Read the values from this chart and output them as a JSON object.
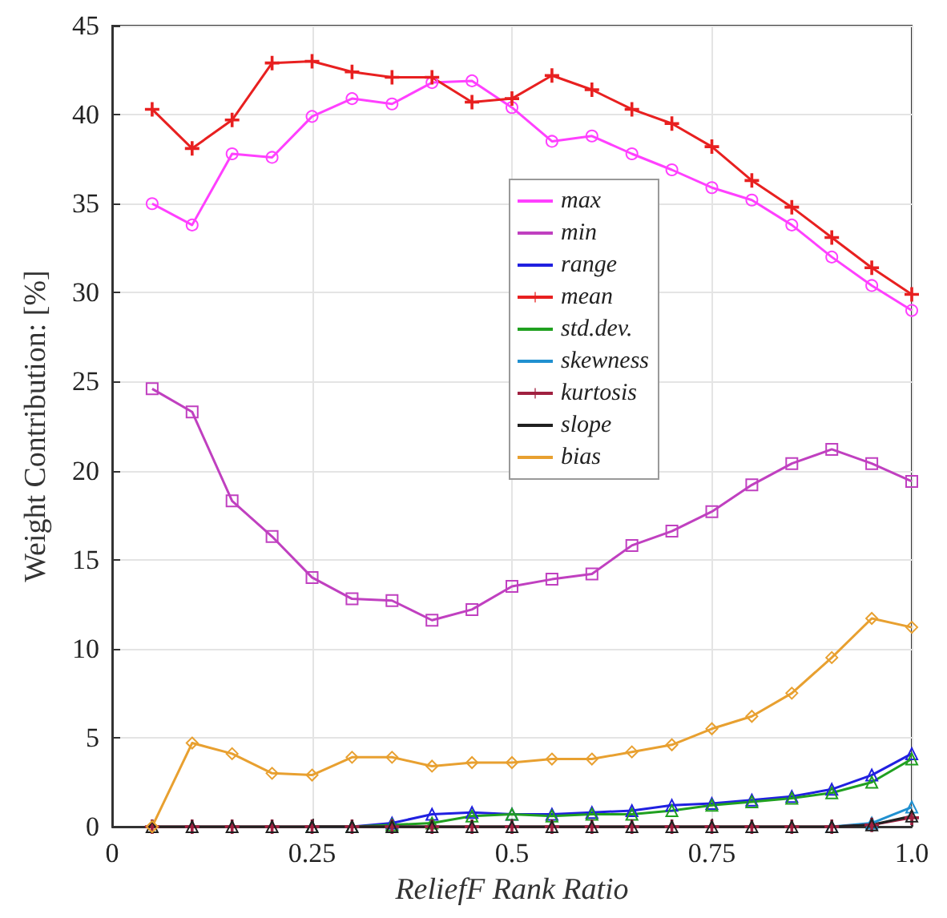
{
  "chart_data": {
    "type": "line",
    "xlabel": "ReliefF Rank Ratio",
    "ylabel": "Weight Contribution: [%]",
    "x": [
      0.05,
      0.1,
      0.15,
      0.2,
      0.25,
      0.3,
      0.35,
      0.4,
      0.45,
      0.5,
      0.55,
      0.6,
      0.65,
      0.7,
      0.75,
      0.8,
      0.85,
      0.9,
      0.95,
      1.0
    ],
    "series": [
      {
        "name": "max",
        "color": "#ff40ff",
        "marker": "circle",
        "values": [
          35.0,
          33.8,
          37.8,
          37.6,
          39.9,
          40.9,
          40.6,
          41.8,
          41.9,
          40.4,
          38.5,
          38.8,
          37.8,
          36.9,
          35.9,
          35.2,
          33.8,
          32.0,
          30.4,
          29.0
        ]
      },
      {
        "name": "min",
        "color": "#c040c0",
        "marker": "square",
        "values": [
          24.6,
          23.3,
          18.3,
          16.3,
          14.0,
          12.8,
          12.7,
          11.6,
          12.2,
          13.5,
          13.9,
          14.2,
          15.8,
          16.6,
          17.7,
          19.2,
          20.4,
          21.2,
          20.4,
          19.4
        ]
      },
      {
        "name": "range",
        "color": "#2020e0",
        "marker": "triangle",
        "values": [
          null,
          null,
          null,
          null,
          0,
          0,
          0.2,
          0.7,
          0.8,
          0.7,
          0.7,
          0.8,
          0.9,
          1.2,
          1.3,
          1.5,
          1.7,
          2.1,
          2.9,
          4.1
        ]
      },
      {
        "name": "mean",
        "color": "#e82020",
        "marker": "cross",
        "values": [
          40.3,
          38.1,
          39.7,
          42.9,
          43.0,
          42.4,
          42.1,
          42.1,
          40.7,
          40.9,
          42.2,
          41.4,
          40.3,
          39.5,
          38.2,
          36.3,
          34.8,
          33.1,
          31.4,
          29.9
        ]
      },
      {
        "name": "std.dev.",
        "color": "#20a020",
        "marker": "triangle",
        "values": [
          null,
          null,
          null,
          null,
          0,
          0,
          0.1,
          0.2,
          0.6,
          0.7,
          0.6,
          0.7,
          0.7,
          0.9,
          1.2,
          1.4,
          1.6,
          1.9,
          2.5,
          3.8
        ]
      },
      {
        "name": "skewness",
        "color": "#2090d0",
        "marker": "triangle",
        "values": [
          null,
          null,
          null,
          null,
          null,
          null,
          null,
          null,
          null,
          null,
          null,
          null,
          null,
          null,
          null,
          null,
          null,
          0,
          0.2,
          1.1
        ]
      },
      {
        "name": "kurtosis",
        "color": "#a02040",
        "marker": "cross",
        "values": [
          0,
          0,
          0,
          0,
          0,
          0,
          0,
          0,
          0,
          0,
          0,
          0,
          0,
          0,
          0,
          0,
          0,
          0,
          0.1,
          0.5
        ]
      },
      {
        "name": "slope",
        "color": "#202020",
        "marker": "triangle",
        "values": [
          0,
          0,
          0,
          0,
          0,
          0,
          0,
          0,
          0,
          0,
          0,
          0,
          0,
          0,
          0,
          0,
          0,
          0,
          0.1,
          0.6
        ]
      },
      {
        "name": "bias",
        "color": "#e8a030",
        "marker": "diamond",
        "values": [
          0,
          4.7,
          4.1,
          3.0,
          2.9,
          3.9,
          3.9,
          3.4,
          3.6,
          3.6,
          3.8,
          3.8,
          4.2,
          4.6,
          5.5,
          6.2,
          7.5,
          9.5,
          11.7,
          11.2
        ]
      }
    ],
    "xlim": [
      0,
      1
    ],
    "xticks": [
      0,
      0.25,
      0.5,
      0.75,
      {
        "value": 1,
        "label": "1.0"
      }
    ],
    "ylim": [
      0,
      45
    ],
    "yticks": [
      0,
      5,
      10,
      15,
      20,
      25,
      30,
      35,
      40,
      45
    ],
    "grid": true,
    "legend": "top center",
    "line_style": "solid"
  }
}
